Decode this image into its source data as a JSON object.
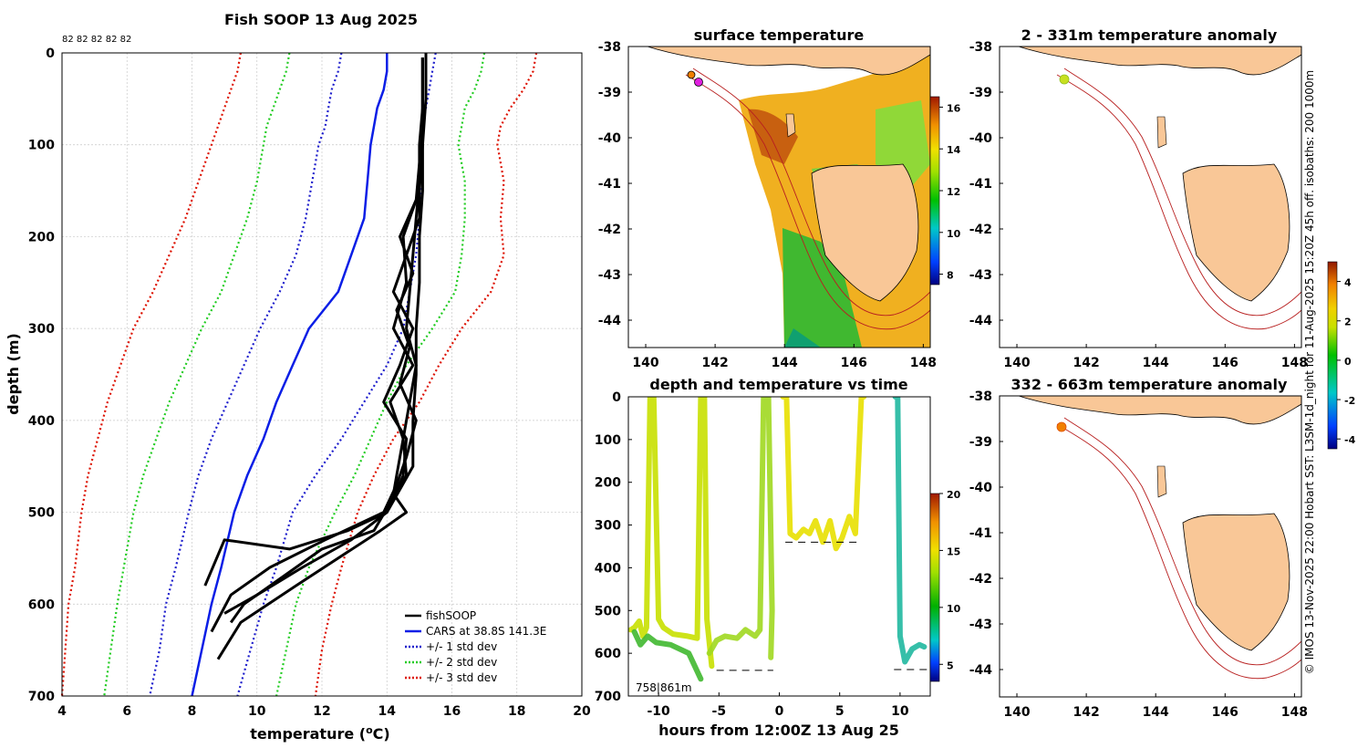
{
  "colors": {
    "fish": "#000000",
    "cars": "#0a1ee6",
    "std1": "#1e1ecc",
    "std2": "#22cc22",
    "std3": "#dd1100",
    "land": "#f9c797",
    "isobath": "#b82020"
  },
  "chart_data": [
    {
      "type": "line",
      "title": "Fish SOOP 13 Aug 2025",
      "xlabel": "temperature (",
      "xlabel_unit": "o",
      "xlabel_end": "C)",
      "ylabel": "depth (m)",
      "xlim": [
        4,
        20
      ],
      "ylim": [
        700,
        0
      ],
      "xticks": [
        "4",
        "6",
        "8",
        "10",
        "12",
        "14",
        "16",
        "18",
        "20"
      ],
      "yticks": [
        "0",
        "100",
        "200",
        "300",
        "400",
        "500",
        "600",
        "700"
      ],
      "grid": true,
      "top_annotation": "82 82 82 82 82",
      "legend_position": "bottom-right",
      "legend": [
        "fishSOOP",
        "CARS at 38.8S 141.3E",
        "+/- 1 std dev",
        "+/- 2 std dev",
        "+/- 3 std dev"
      ],
      "series": [
        {
          "name": "CARS mean",
          "x": [
            14.0,
            14.0,
            13.9,
            13.7,
            13.6,
            13.5,
            13.4,
            13.3,
            12.9,
            12.5,
            11.6,
            11.1,
            10.6,
            10.2,
            9.7,
            9.3,
            8.9,
            8.6,
            8.3,
            8.0
          ],
          "y": [
            0,
            20,
            40,
            60,
            80,
            100,
            140,
            180,
            220,
            260,
            300,
            340,
            380,
            420,
            460,
            500,
            560,
            600,
            650,
            700
          ]
        },
        {
          "name": "CARS -1 std",
          "x": [
            12.6,
            12.5,
            12.3,
            12.2,
            12.1,
            11.9,
            11.7,
            11.5,
            11.2,
            10.7,
            10.1,
            9.6,
            9.1,
            8.6,
            8.2,
            7.9,
            7.5,
            7.2,
            7.0,
            6.7
          ],
          "y": [
            0,
            20,
            40,
            60,
            80,
            100,
            140,
            180,
            220,
            260,
            300,
            340,
            380,
            420,
            460,
            500,
            560,
            600,
            650,
            700
          ]
        },
        {
          "name": "CARS +1 std",
          "x": [
            15.5,
            15.4,
            15.3,
            15.2,
            15.1,
            15.0,
            15.1,
            15.0,
            14.9,
            14.7,
            14.5,
            14.0,
            13.3,
            12.6,
            11.8,
            11.1,
            10.6,
            10.2,
            9.8,
            9.4
          ],
          "y": [
            0,
            20,
            40,
            60,
            80,
            100,
            140,
            180,
            220,
            260,
            300,
            340,
            380,
            420,
            460,
            500,
            560,
            600,
            650,
            700
          ]
        },
        {
          "name": "CARS -2 std",
          "x": [
            11.0,
            10.9,
            10.7,
            10.5,
            10.3,
            10.2,
            10.0,
            9.7,
            9.3,
            8.9,
            8.3,
            7.8,
            7.3,
            6.9,
            6.5,
            6.2,
            5.9,
            5.7,
            5.5,
            5.3
          ],
          "y": [
            0,
            20,
            40,
            60,
            80,
            100,
            140,
            180,
            220,
            260,
            300,
            340,
            380,
            420,
            460,
            500,
            560,
            600,
            650,
            700
          ]
        },
        {
          "name": "CARS +2 std",
          "x": [
            17.0,
            16.9,
            16.7,
            16.4,
            16.3,
            16.2,
            16.4,
            16.4,
            16.3,
            16.1,
            15.4,
            14.6,
            14.0,
            13.5,
            13.0,
            12.4,
            11.6,
            11.2,
            10.9,
            10.6
          ],
          "y": [
            0,
            20,
            40,
            60,
            80,
            100,
            140,
            180,
            220,
            260,
            300,
            340,
            380,
            420,
            460,
            500,
            560,
            600,
            650,
            700
          ]
        },
        {
          "name": "CARS -3 std",
          "x": [
            9.5,
            9.4,
            9.2,
            9.0,
            8.8,
            8.6,
            8.2,
            7.8,
            7.3,
            6.8,
            6.2,
            5.8,
            5.4,
            5.1,
            4.8,
            4.6,
            4.4,
            4.2,
            4.1,
            4.0
          ],
          "y": [
            0,
            20,
            40,
            60,
            80,
            100,
            140,
            180,
            220,
            260,
            300,
            340,
            380,
            420,
            460,
            500,
            560,
            600,
            650,
            700
          ]
        },
        {
          "name": "CARS +3 std",
          "x": [
            18.6,
            18.5,
            18.2,
            17.8,
            17.5,
            17.4,
            17.6,
            17.5,
            17.6,
            17.2,
            16.3,
            15.6,
            15.0,
            14.2,
            13.6,
            13.1,
            12.6,
            12.3,
            12.0,
            11.8
          ],
          "y": [
            0,
            20,
            40,
            60,
            80,
            100,
            140,
            180,
            220,
            260,
            300,
            340,
            380,
            420,
            460,
            500,
            560,
            600,
            650,
            700
          ]
        },
        {
          "name": "fishSOOP profile 1",
          "x": [
            15.1,
            15.1,
            15.0,
            15.0,
            14.9,
            14.8,
            14.7,
            14.6,
            14.9,
            14.7,
            14.5,
            14.3,
            14.2,
            14.6,
            13.8,
            12.5,
            11.2,
            9.5,
            8.8
          ],
          "y": [
            5,
            60,
            100,
            140,
            180,
            220,
            260,
            300,
            340,
            380,
            420,
            460,
            480,
            500,
            520,
            550,
            580,
            620,
            660
          ]
        },
        {
          "name": "fishSOOP profile 2",
          "x": [
            15.1,
            15.1,
            15.0,
            14.9,
            14.4,
            14.8,
            14.3,
            14.7,
            14.4,
            14.9,
            14.6,
            14.3,
            13.9,
            12.1,
            10.4,
            9.2,
            8.6
          ],
          "y": [
            5,
            80,
            120,
            160,
            200,
            240,
            280,
            320,
            360,
            400,
            440,
            470,
            500,
            530,
            560,
            590,
            630
          ]
        },
        {
          "name": "fishSOOP profile 3",
          "x": [
            15.1,
            15.1,
            15.0,
            15.0,
            14.6,
            14.2,
            14.8,
            14.4,
            13.9,
            14.6,
            14.5,
            14.0,
            12.8,
            11.0,
            9.0,
            8.4
          ],
          "y": [
            5,
            80,
            130,
            180,
            220,
            260,
            300,
            340,
            380,
            420,
            460,
            500,
            520,
            540,
            530,
            580
          ]
        },
        {
          "name": "fishSOOP profile 4",
          "x": [
            15.1,
            15.1,
            15.0,
            14.5,
            14.6,
            14.2,
            14.8,
            14.1,
            14.5,
            14.6,
            13.6,
            12.0,
            10.8,
            9.6,
            9.2
          ],
          "y": [
            5,
            100,
            150,
            200,
            250,
            300,
            340,
            380,
            420,
            460,
            520,
            540,
            570,
            600,
            620
          ]
        },
        {
          "name": "fishSOOP profile 5",
          "x": [
            15.2,
            15.2,
            15.1,
            15.1,
            15.0,
            15.0,
            14.9,
            14.9,
            14.8,
            14.8,
            14.0,
            12.9,
            11.4,
            10.0,
            9.0
          ],
          "y": [
            0,
            50,
            100,
            150,
            200,
            250,
            300,
            350,
            400,
            450,
            500,
            530,
            560,
            590,
            610
          ]
        }
      ]
    },
    {
      "type": "heatmap",
      "title": "surface temperature",
      "xticks": [
        "140",
        "142",
        "144",
        "146",
        "148"
      ],
      "yticks": [
        "-38",
        "-39",
        "-40",
        "-41",
        "-42",
        "-43",
        "-44"
      ],
      "xlim": [
        139.5,
        148.2
      ],
      "ylim": [
        -44.6,
        -38.0
      ],
      "colorbar": {
        "ticks": [
          "16",
          "14",
          "12",
          "10",
          "8"
        ],
        "range": [
          7.5,
          16.5
        ]
      }
    },
    {
      "type": "scatter",
      "title": "depth and temperature vs time",
      "xlabel": "hours from 12:00Z 13 Aug 25",
      "xticks": [
        "-10",
        "-5",
        "0",
        "5",
        "10"
      ],
      "yticks": [
        "0",
        "100",
        "200",
        "300",
        "400",
        "500",
        "600",
        "700"
      ],
      "xlim": [
        -12.5,
        12.5
      ],
      "ylim": [
        700,
        0
      ],
      "annotation": "758|861m",
      "bottom_depth_markers": [
        {
          "t0": -5.2,
          "t1": -0.5,
          "depth": 640
        },
        {
          "t0": 0.5,
          "t1": 6.8,
          "depth": 340
        },
        {
          "t0": 9.5,
          "t1": 12.3,
          "depth": 638
        }
      ],
      "colorbar": {
        "ticks": [
          "20",
          "15",
          "10",
          "5"
        ],
        "range": [
          3.5,
          20
        ]
      }
    },
    {
      "type": "heatmap",
      "title": "2 - 331m temperature anomaly",
      "xticks": [
        "140",
        "142",
        "144",
        "146",
        "148"
      ],
      "yticks": [
        "-38",
        "-39",
        "-40",
        "-41",
        "-42",
        "-43",
        "-44"
      ],
      "xlim": [
        139.5,
        148.2
      ],
      "ylim": [
        -44.6,
        -38.0
      ],
      "colorbar": {
        "ticks": [
          "4",
          "2",
          "0",
          "-2",
          "-4"
        ],
        "range": [
          -4.5,
          5
        ]
      }
    },
    {
      "type": "heatmap",
      "title": "332 - 663m temperature anomaly",
      "xticks": [
        "140",
        "142",
        "144",
        "146",
        "148"
      ],
      "yticks": [
        "-38",
        "-39",
        "-40",
        "-41",
        "-42",
        "-43",
        "-44"
      ],
      "xlim": [
        139.5,
        148.2
      ],
      "ylim": [
        -44.6,
        -38.0
      ]
    }
  ],
  "side_credit": "© IMOS 13-Nov-2025 22:00 Hobart SST: L3SM-1d_night for 11-Aug-2025 15:20Z 45h off. isobaths: 200  1000m"
}
